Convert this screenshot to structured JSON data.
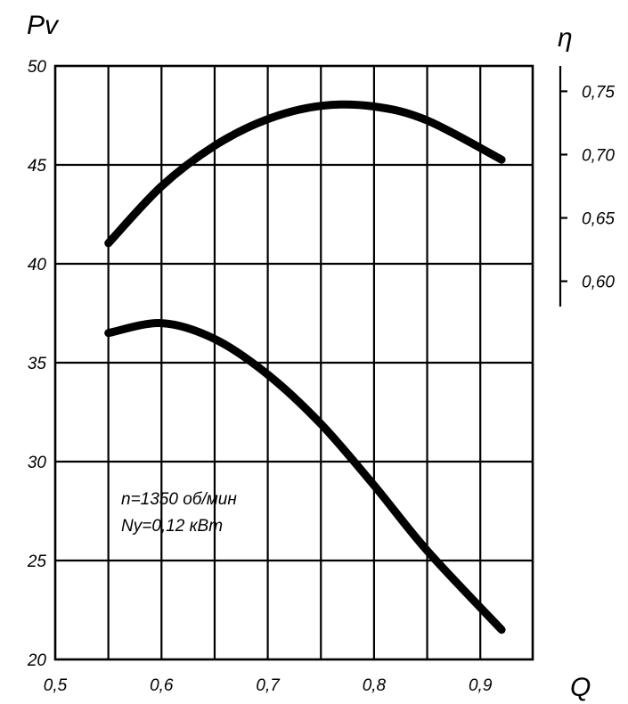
{
  "chart_data": {
    "type": "line",
    "x_label": "Q",
    "y_label_left": "Pv",
    "y_label_right": "η",
    "xlim": [
      0.5,
      0.95
    ],
    "ylim_left": [
      20,
      50
    ],
    "ylim_right": [
      0.58,
      0.77
    ],
    "x_ticks": [
      0.5,
      0.6,
      0.7,
      0.8,
      0.9
    ],
    "x_tick_labels": [
      "0,5",
      "0,6",
      "0,7",
      "0,8",
      "0,9"
    ],
    "y_ticks_left": [
      20,
      25,
      30,
      35,
      40,
      45,
      50
    ],
    "y_tick_labels_left": [
      "20",
      "25",
      "30",
      "35",
      "40",
      "45",
      "50"
    ],
    "y_ticks_right": [
      0.6,
      0.65,
      0.7,
      0.75
    ],
    "y_tick_labels_right": [
      "0,60",
      "0,65",
      "0,70",
      "0,75"
    ],
    "grid": true,
    "series": [
      {
        "axis": "right",
        "x": [
          0.55,
          0.6,
          0.65,
          0.7,
          0.75,
          0.8,
          0.85,
          0.92
        ],
        "y": [
          0.63,
          0.675,
          0.707,
          0.728,
          0.7385,
          0.738,
          0.727,
          0.696
        ]
      },
      {
        "axis": "left",
        "x": [
          0.55,
          0.6,
          0.65,
          0.7,
          0.75,
          0.8,
          0.85,
          0.92
        ],
        "y": [
          36.5,
          37.0,
          36.2,
          34.4,
          31.9,
          28.8,
          25.5,
          21.5
        ]
      }
    ],
    "annotations": [
      "n=1350  об/мин",
      "Ny=0,12  кВт"
    ]
  }
}
